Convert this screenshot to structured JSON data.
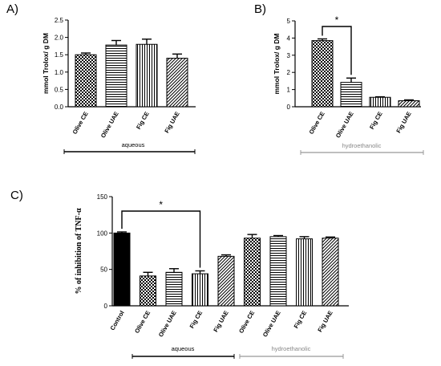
{
  "patterns": {
    "Olive CE": "checker",
    "Olive UAE": "hlines",
    "Fig CE": "vlines",
    "Fig UAE": "diag",
    "Control": "solid"
  },
  "colors": {
    "aqueous_line": "#000000",
    "hydro_line": "#999999",
    "hydro_text": "#888888"
  },
  "chart_data": [
    {
      "panel": "A)",
      "type": "bar",
      "categories": [
        "Olive CE",
        "Olive UAE",
        "Fig CE",
        "Fig UAE"
      ],
      "values": [
        1.5,
        1.78,
        1.8,
        1.4
      ],
      "errors": [
        0.05,
        0.13,
        0.15,
        0.12
      ],
      "ylabel": "mmol Trolox/ g DM",
      "ylim": [
        0,
        2.5
      ],
      "yticks": [
        "0.0",
        "0.5",
        "1.0",
        "1.5",
        "2.0",
        "2.5"
      ],
      "group_label": "aqueous",
      "significance": null
    },
    {
      "panel": "B)",
      "type": "bar",
      "categories": [
        "Olive CE",
        "Olive UAE",
        "Fig CE",
        "Fig UAE"
      ],
      "values": [
        3.85,
        1.42,
        0.55,
        0.35
      ],
      "errors": [
        0.1,
        0.25,
        0.03,
        0.05
      ],
      "ylabel": "mmol Trolox/ g DM",
      "ylim": [
        0,
        5
      ],
      "yticks": [
        "0",
        "1",
        "2",
        "3",
        "4",
        "5"
      ],
      "group_label": "hydroethanolic",
      "significance": {
        "from": 0,
        "to": 1,
        "label": "*"
      }
    },
    {
      "panel": "C)",
      "type": "bar",
      "categories": [
        "Control",
        "Olive CE",
        "Olive UAE",
        "Fig CE",
        "Fig UAE",
        "Olive CE",
        "Olive UAE",
        "Fig CE",
        "Fig UAE"
      ],
      "values": [
        100,
        41,
        46,
        44,
        68,
        93,
        95,
        92,
        93
      ],
      "errors": [
        1.5,
        5,
        5,
        4,
        2,
        5,
        1.5,
        3,
        1.5
      ],
      "ylabel": "% of inhibition of TNF-α",
      "ylim": [
        0,
        150
      ],
      "yticks": [
        "0",
        "50",
        "100",
        "150"
      ],
      "groups": [
        {
          "label": "aqueous",
          "from": 1,
          "to": 4
        },
        {
          "label": "hydroethanolic",
          "from": 5,
          "to": 8
        }
      ],
      "significance": {
        "from": 0,
        "to": 3,
        "label": "*"
      }
    }
  ]
}
